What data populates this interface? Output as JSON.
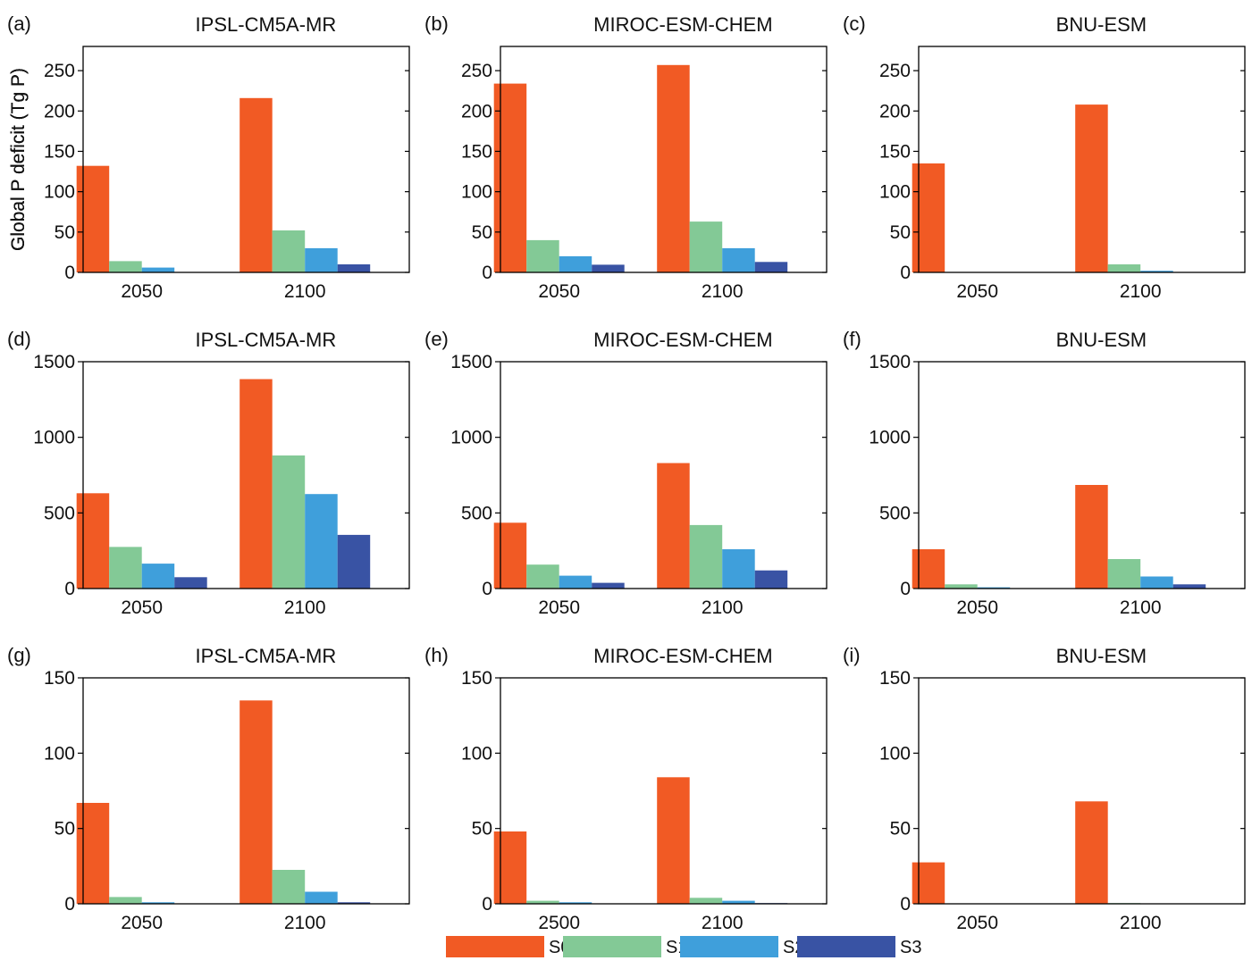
{
  "colors": {
    "S0": "#f15a24",
    "S1": "#83c996",
    "S2": "#3f9fdb",
    "S3": "#3953a4"
  },
  "legend": [
    {
      "key": "S0",
      "label": "S0"
    },
    {
      "key": "S1",
      "label": "S1"
    },
    {
      "key": "S2",
      "label": "S2"
    },
    {
      "key": "S3",
      "label": "S3"
    }
  ],
  "chart_data": [
    {
      "panel": "(a)",
      "title": "IPSL-CM5A-MR",
      "type": "bar",
      "ylabel": "Global P deficit (Tg P)",
      "categories": [
        "2050",
        "2100"
      ],
      "ylim": [
        0,
        280
      ],
      "yticks": [
        0,
        50,
        100,
        150,
        200,
        250
      ],
      "series": [
        {
          "name": "S0",
          "values": [
            132,
            216
          ]
        },
        {
          "name": "S1",
          "values": [
            14,
            52
          ]
        },
        {
          "name": "S2",
          "values": [
            6,
            30
          ]
        },
        {
          "name": "S3",
          "values": [
            0,
            10
          ]
        }
      ]
    },
    {
      "panel": "(d)",
      "title": "IPSL-CM5A-MR",
      "type": "bar",
      "ylabel": "",
      "categories": [
        "2050",
        "2100"
      ],
      "ylim": [
        0,
        1500
      ],
      "yticks": [
        0,
        500,
        1000,
        1500
      ],
      "series": [
        {
          "name": "S0",
          "values": [
            630,
            1385
          ]
        },
        {
          "name": "S1",
          "values": [
            275,
            880
          ]
        },
        {
          "name": "S2",
          "values": [
            165,
            625
          ]
        },
        {
          "name": "S3",
          "values": [
            75,
            355
          ]
        }
      ]
    },
    {
      "panel": "(g)",
      "title": "IPSL-CM5A-MR",
      "type": "bar",
      "ylabel": "",
      "categories": [
        "2050",
        "2100"
      ],
      "ylim": [
        0,
        150
      ],
      "yticks": [
        0,
        50,
        100,
        150
      ],
      "series": [
        {
          "name": "S0",
          "values": [
            67,
            135
          ]
        },
        {
          "name": "S1",
          "values": [
            4.5,
            22.5
          ]
        },
        {
          "name": "S2",
          "values": [
            1,
            8
          ]
        },
        {
          "name": "S3",
          "values": [
            0,
            1
          ]
        }
      ]
    },
    {
      "panel": "(b)",
      "title": "MIROC-ESM-CHEM",
      "type": "bar",
      "ylabel": "Global P deficit (Tg P)",
      "categories": [
        "2050",
        "2100"
      ],
      "ylim": [
        0,
        280
      ],
      "yticks": [
        0,
        50,
        100,
        150,
        200,
        250
      ],
      "series": [
        {
          "name": "S0",
          "values": [
            234,
            257
          ]
        },
        {
          "name": "S1",
          "values": [
            40,
            63
          ]
        },
        {
          "name": "S2",
          "values": [
            20,
            30
          ]
        },
        {
          "name": "S3",
          "values": [
            9.5,
            13
          ]
        }
      ]
    },
    {
      "panel": "(e)",
      "title": "MIROC-ESM-CHEM",
      "type": "bar",
      "ylabel": "",
      "categories": [
        "2050",
        "2100"
      ],
      "ylim": [
        0,
        1500
      ],
      "yticks": [
        0,
        500,
        1000,
        1500
      ],
      "series": [
        {
          "name": "S0",
          "values": [
            435,
            830
          ]
        },
        {
          "name": "S1",
          "values": [
            158,
            420
          ]
        },
        {
          "name": "S2",
          "values": [
            85,
            260
          ]
        },
        {
          "name": "S3",
          "values": [
            38,
            120
          ]
        }
      ]
    },
    {
      "panel": "(h)",
      "title": "MIROC-ESM-CHEM",
      "type": "bar",
      "ylabel": "",
      "categories": [
        "2500",
        "2100"
      ],
      "ylim": [
        0,
        150
      ],
      "yticks": [
        0,
        50,
        100,
        150
      ],
      "series": [
        {
          "name": "S0",
          "values": [
            48,
            84
          ]
        },
        {
          "name": "S1",
          "values": [
            2,
            4
          ]
        },
        {
          "name": "S2",
          "values": [
            1,
            2
          ]
        },
        {
          "name": "S3",
          "values": [
            0,
            0.5
          ]
        }
      ]
    },
    {
      "panel": "(c)",
      "title": "BNU-ESM",
      "type": "bar",
      "ylabel": "Global P deficit (Tg P)",
      "categories": [
        "2050",
        "2100"
      ],
      "ylim": [
        0,
        280
      ],
      "yticks": [
        0,
        50,
        100,
        150,
        200,
        250
      ],
      "series": [
        {
          "name": "S0",
          "values": [
            135,
            208
          ]
        },
        {
          "name": "S1",
          "values": [
            0.5,
            10
          ]
        },
        {
          "name": "S2",
          "values": [
            0,
            2
          ]
        },
        {
          "name": "S3",
          "values": [
            0,
            0
          ]
        }
      ]
    },
    {
      "panel": "(f)",
      "title": "BNU-ESM",
      "type": "bar",
      "ylabel": "",
      "categories": [
        "2050",
        "2100"
      ],
      "ylim": [
        0,
        1500
      ],
      "yticks": [
        0,
        500,
        1000,
        1500
      ],
      "series": [
        {
          "name": "S0",
          "values": [
            260,
            685
          ]
        },
        {
          "name": "S1",
          "values": [
            28,
            195
          ]
        },
        {
          "name": "S2",
          "values": [
            8,
            80
          ]
        },
        {
          "name": "S3",
          "values": [
            0,
            28
          ]
        }
      ]
    },
    {
      "panel": "(i)",
      "title": "BNU-ESM",
      "type": "bar",
      "ylabel": "",
      "categories": [
        "2050",
        "2100"
      ],
      "ylim": [
        0,
        150
      ],
      "yticks": [
        0,
        50,
        100,
        150
      ],
      "series": [
        {
          "name": "S0",
          "values": [
            27.5,
            68
          ]
        },
        {
          "name": "S1",
          "values": [
            0,
            0.5
          ]
        },
        {
          "name": "S2",
          "values": [
            0,
            0
          ]
        },
        {
          "name": "S3",
          "values": [
            0,
            0
          ]
        }
      ]
    }
  ]
}
